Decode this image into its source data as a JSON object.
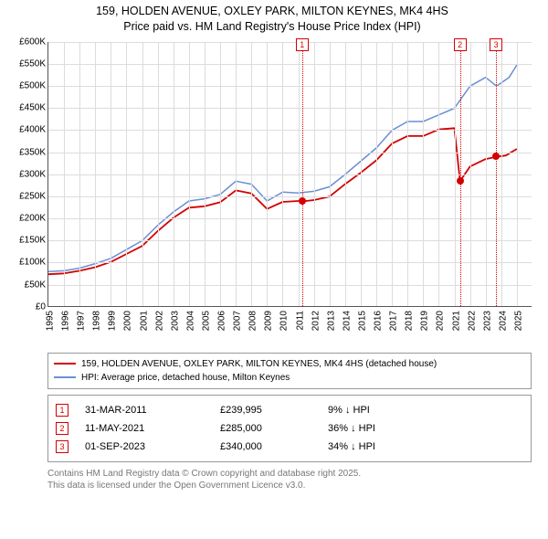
{
  "title_line1": "159, HOLDEN AVENUE, OXLEY PARK, MILTON KEYNES, MK4 4HS",
  "title_line2": "Price paid vs. HM Land Registry's House Price Index (HPI)",
  "chart": {
    "type": "line",
    "background_color": "#ffffff",
    "grid_color": "#dcdcdc",
    "axis_color": "#555555",
    "x": {
      "min": 1995,
      "max": 2026,
      "tick_step": 1,
      "label_fontsize": 10
    },
    "y": {
      "min": 0,
      "max": 600000,
      "tick_step": 50000,
      "label_prefix": "£",
      "label_suffix": "K",
      "label_divisor": 1000,
      "label_fontsize": 10
    },
    "series": [
      {
        "name": "HPI: Average price, detached house, Milton Keynes",
        "color": "#6a8fd4",
        "line_width": 1.5,
        "points": [
          [
            1995,
            80000
          ],
          [
            1996,
            82000
          ],
          [
            1997,
            88000
          ],
          [
            1998,
            98000
          ],
          [
            1999,
            110000
          ],
          [
            2000,
            130000
          ],
          [
            2001,
            150000
          ],
          [
            2002,
            185000
          ],
          [
            2003,
            215000
          ],
          [
            2004,
            240000
          ],
          [
            2005,
            245000
          ],
          [
            2006,
            255000
          ],
          [
            2007,
            285000
          ],
          [
            2008,
            278000
          ],
          [
            2009,
            240000
          ],
          [
            2010,
            260000
          ],
          [
            2011,
            258000
          ],
          [
            2012,
            262000
          ],
          [
            2013,
            272000
          ],
          [
            2014,
            300000
          ],
          [
            2015,
            330000
          ],
          [
            2016,
            360000
          ],
          [
            2017,
            400000
          ],
          [
            2018,
            420000
          ],
          [
            2019,
            420000
          ],
          [
            2020,
            435000
          ],
          [
            2021,
            450000
          ],
          [
            2022,
            500000
          ],
          [
            2023,
            520000
          ],
          [
            2023.7,
            500000
          ],
          [
            2024.5,
            520000
          ],
          [
            2025,
            548000
          ]
        ]
      },
      {
        "name": "159, HOLDEN AVENUE, OXLEY PARK, MILTON KEYNES, MK4 4HS (detached house)",
        "color": "#d40000",
        "line_width": 1.8,
        "points": [
          [
            1995,
            74000
          ],
          [
            1996,
            76000
          ],
          [
            1997,
            82000
          ],
          [
            1998,
            90000
          ],
          [
            1999,
            102000
          ],
          [
            2000,
            120000
          ],
          [
            2001,
            138000
          ],
          [
            2002,
            172000
          ],
          [
            2003,
            202000
          ],
          [
            2004,
            225000
          ],
          [
            2005,
            228000
          ],
          [
            2006,
            237000
          ],
          [
            2007,
            264000
          ],
          [
            2008,
            257000
          ],
          [
            2009,
            222000
          ],
          [
            2010,
            238000
          ],
          [
            2011,
            239995
          ],
          [
            2011.5,
            239995
          ],
          [
            2012,
            242000
          ],
          [
            2013,
            250000
          ],
          [
            2014,
            278000
          ],
          [
            2015,
            304000
          ],
          [
            2016,
            332000
          ],
          [
            2017,
            370000
          ],
          [
            2018,
            387000
          ],
          [
            2019,
            387000
          ],
          [
            2020,
            402000
          ],
          [
            2021,
            405000
          ],
          [
            2021.36,
            285000
          ],
          [
            2022,
            318000
          ],
          [
            2023,
            335000
          ],
          [
            2023.67,
            340000
          ],
          [
            2024.3,
            343000
          ],
          [
            2025,
            358000
          ]
        ]
      }
    ],
    "sale_markers": [
      {
        "n": "1",
        "x": 2011.25,
        "price": 239995
      },
      {
        "n": "2",
        "x": 2021.36,
        "price": 285000
      },
      {
        "n": "3",
        "x": 2023.67,
        "price": 340000
      }
    ]
  },
  "legend": [
    {
      "color": "#d40000",
      "label": "159, HOLDEN AVENUE, OXLEY PARK, MILTON KEYNES, MK4 4HS (detached house)"
    },
    {
      "color": "#6a8fd4",
      "label": "HPI: Average price, detached house, Milton Keynes"
    }
  ],
  "sales": [
    {
      "n": "1",
      "date": "31-MAR-2011",
      "price": "£239,995",
      "diff_pct": "9%",
      "arrow": "↓",
      "diff_label": "HPI"
    },
    {
      "n": "2",
      "date": "11-MAY-2021",
      "price": "£285,000",
      "diff_pct": "36%",
      "arrow": "↓",
      "diff_label": "HPI"
    },
    {
      "n": "3",
      "date": "01-SEP-2023",
      "price": "£340,000",
      "diff_pct": "34%",
      "arrow": "↓",
      "diff_label": "HPI"
    }
  ],
  "footer_line1": "Contains HM Land Registry data © Crown copyright and database right 2025.",
  "footer_line2": "This data is licensed under the Open Government Licence v3.0."
}
